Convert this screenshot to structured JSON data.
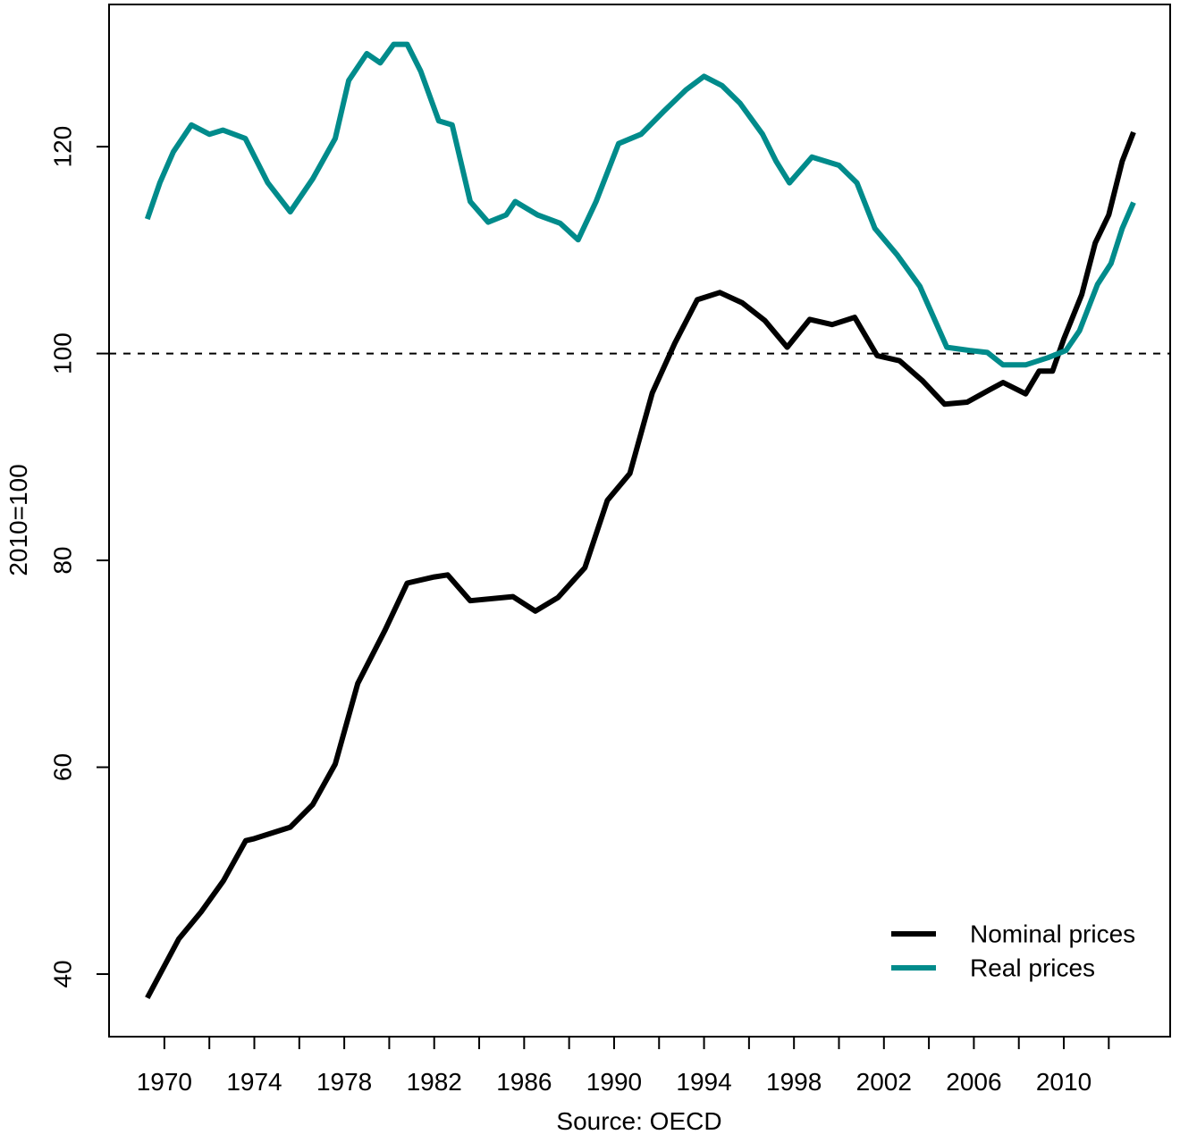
{
  "chart_data": {
    "type": "line",
    "xlabel": "Source: OECD",
    "ylabel": "2010=100",
    "xlim": [
      1967.54,
      2014.73
    ],
    "ylim": [
      33.95,
      133.75
    ],
    "xticks": [
      1970,
      1974,
      1978,
      1982,
      1986,
      1990,
      1994,
      1998,
      2002,
      2006,
      2010
    ],
    "xminor_ticks": [
      1972,
      1976,
      1980,
      1984,
      1988,
      1992,
      1996,
      2000,
      2004,
      2008,
      2012
    ],
    "yticks": [
      40,
      60,
      80,
      100,
      120
    ],
    "reference_line": 100,
    "legend_position": "bottomright",
    "series": [
      {
        "name": "Nominal prices",
        "color": "#000000",
        "x": [
          1969.24,
          1970.64,
          1971.63,
          1972.62,
          1973.62,
          1974.0,
          1975.6,
          1976.6,
          1977.6,
          1978.6,
          1979.8,
          1980.8,
          1982.0,
          1982.6,
          1983.6,
          1985.5,
          1986.5,
          1987.5,
          1988.7,
          1989.7,
          1990.7,
          1991.7,
          1992.7,
          1993.7,
          1994.7,
          1995.7,
          1996.7,
          1997.7,
          1998.7,
          1999.7,
          2000.7,
          2001.7,
          2002.7,
          2003.7,
          2004.7,
          2005.7,
          2006.7,
          2007.3,
          2008.3,
          2008.9,
          2009.5,
          2010.0,
          2010.8,
          2011.4,
          2012.0,
          2012.6,
          2013.1
        ],
        "values": [
          37.7,
          43.4,
          46.0,
          49.0,
          52.9,
          53.1,
          54.2,
          56.4,
          60.3,
          68.1,
          73.2,
          77.8,
          78.4,
          78.6,
          76.1,
          76.5,
          75.1,
          76.4,
          79.3,
          85.8,
          88.4,
          96.2,
          101.0,
          105.2,
          105.9,
          104.9,
          103.2,
          100.6,
          103.3,
          102.8,
          103.5,
          99.8,
          99.3,
          97.4,
          95.1,
          95.3,
          96.5,
          97.2,
          96.1,
          98.3,
          98.3,
          101.4,
          105.7,
          110.7,
          113.4,
          118.6,
          121.4
        ]
      },
      {
        "name": "Real prices",
        "color": "#008B8B",
        "x": [
          1969.24,
          1969.8,
          1970.4,
          1971.2,
          1972.0,
          1972.6,
          1973.6,
          1974.6,
          1975.6,
          1976.6,
          1977.6,
          1978.2,
          1979.0,
          1979.6,
          1980.2,
          1980.8,
          1981.4,
          1982.2,
          1982.8,
          1983.6,
          1984.4,
          1985.2,
          1985.6,
          1986.6,
          1987.6,
          1988.4,
          1989.2,
          1990.2,
          1991.2,
          1992.2,
          1993.2,
          1994.0,
          1994.8,
          1995.6,
          1996.6,
          1997.2,
          1997.8,
          1998.8,
          2000.0,
          2000.8,
          2001.6,
          2002.6,
          2003.6,
          2004.8,
          2005.8,
          2006.6,
          2007.3,
          2008.3,
          2009.3,
          2010.1,
          2010.7,
          2011.5,
          2012.1,
          2012.6,
          2013.1
        ],
        "values": [
          113.0,
          116.5,
          119.5,
          122.1,
          121.2,
          121.6,
          120.8,
          116.5,
          113.7,
          116.9,
          120.8,
          126.4,
          129.0,
          128.1,
          129.9,
          129.9,
          127.3,
          122.5,
          122.1,
          114.7,
          112.7,
          113.4,
          114.7,
          113.4,
          112.6,
          111.0,
          114.7,
          120.3,
          121.2,
          123.4,
          125.5,
          126.8,
          125.9,
          124.2,
          121.2,
          118.6,
          116.5,
          119.0,
          118.2,
          116.5,
          112.1,
          109.5,
          106.5,
          100.6,
          100.3,
          100.1,
          98.9,
          98.9,
          99.6,
          100.3,
          102.2,
          106.7,
          108.7,
          112.1,
          114.6
        ]
      }
    ]
  }
}
